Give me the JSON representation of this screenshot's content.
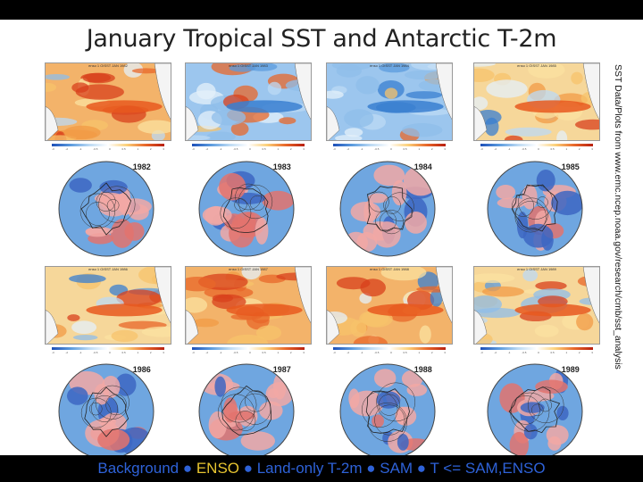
{
  "slide": {
    "title": "January Tropical SST and Antarctic T-2m",
    "side_note": "SST Data/Plots from www.emc.ncep.noaa.gov/research/cmb/sst_analysis",
    "panels": [
      {
        "year": "1982",
        "header": "enso 1 OISST JAN 1982",
        "sst_anomaly": "warm"
      },
      {
        "year": "1983",
        "header": "enso 1 OISST JAN 1983",
        "sst_anomaly": "cool"
      },
      {
        "year": "1984",
        "header": "enso 1 OISST JAN 1984",
        "sst_anomaly": "cool"
      },
      {
        "year": "1985",
        "header": "enso 1 OISST JAN 1985",
        "sst_anomaly": "neutral"
      },
      {
        "year": "1986",
        "header": "enso 1 OISST JAN 1986",
        "sst_anomaly": "neutral"
      },
      {
        "year": "1987",
        "header": "enso 1 OISST JAN 1987",
        "sst_anomaly": "warm"
      },
      {
        "year": "1988",
        "header": "enso 1 OISST JAN 1988",
        "sst_anomaly": "warm"
      },
      {
        "year": "1989",
        "header": "enso 1 OISST JAN 1989",
        "sst_anomaly": "neutral"
      }
    ],
    "colorbar_ticks": [
      "-3",
      "-2",
      "-1",
      "-0.5",
      "0",
      "0.5",
      "1",
      "2",
      "3"
    ],
    "colors": {
      "warm": "#e8591f",
      "cool": "#3a7fd0",
      "ocean_blue": "#6fa6e0",
      "land_pink": "#f2a8a4",
      "footer_text": "#2e62d8",
      "footer_highlight": "#e8c530"
    }
  },
  "footer": {
    "part1": "Background ● ",
    "highlight": "ENSO",
    "part2": " ● Land-only T-2m ● SAM ● T <= SAM,ENSO"
  }
}
